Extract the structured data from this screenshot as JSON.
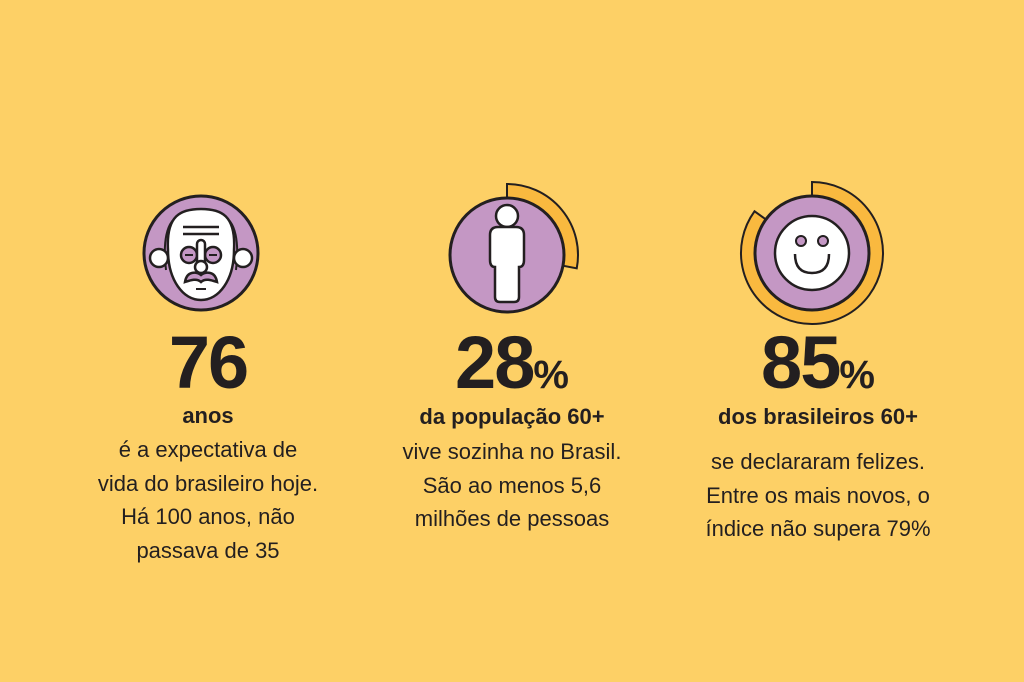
{
  "colors": {
    "background": "#FDD066",
    "purple": "#C497C4",
    "ring": "#F9B93F",
    "outline": "#231F20"
  },
  "stats": [
    {
      "icon": "elderly-face-icon",
      "value": "76",
      "unit": "",
      "subtitle": "anos",
      "lines": [
        "é a expectativa de",
        "vida do brasileiro hoje.",
        "Há 100 anos, não",
        "passava de 35"
      ]
    },
    {
      "icon": "person-icon",
      "value": "28",
      "unit": "%",
      "progress_percent": 28,
      "subtitle": "da população 60+",
      "lines": [
        "vive sozinha no Brasil.",
        "São ao menos 5,6",
        "milhões de pessoas"
      ]
    },
    {
      "icon": "smiley-face-icon",
      "value": "85",
      "unit": "%",
      "progress_percent": 85,
      "subtitle": "dos brasileiros 60+",
      "lines": [
        "se declararam felizes.",
        "Entre os mais novos, o",
        "índice não supera 79%"
      ]
    }
  ]
}
